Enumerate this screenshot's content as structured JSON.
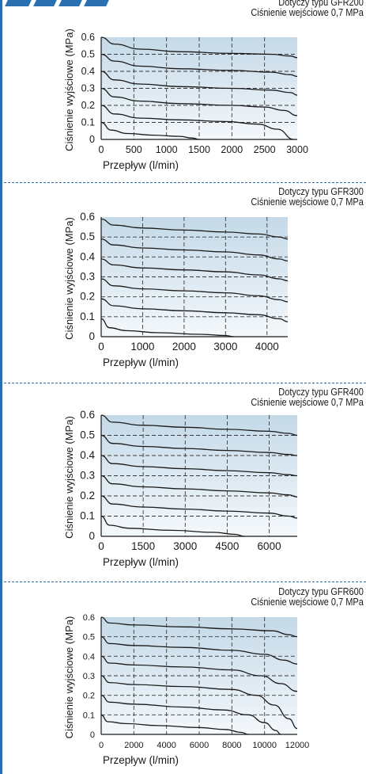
{
  "colors": {
    "accent": "#2a6fb0",
    "plot_top": "#c4d9e8",
    "plot_bottom": "#f4f8fb",
    "curve": "#1a1a1a"
  },
  "captions": [
    {
      "type_label": "Dotyczy typu GFR200",
      "inlet_label": "Ciśnienie wejściowe 0,7 MPa"
    },
    {
      "type_label": "Dotyczy typu GFR300",
      "inlet_label": "Ciśnienie wejściowe 0,7 MPa"
    },
    {
      "type_label": "Dotyczy typu GFR400",
      "inlet_label": "Ciśnienie wejściowe 0,7 MPa"
    },
    {
      "type_label": "Dotyczy typu GFR600",
      "inlet_label": "Ciśnienie wejściowe 0,7 MPa"
    }
  ],
  "chart_data": [
    {
      "type": "line",
      "xlabel": "Przepływ (l/min)",
      "ylabel": "Ciśnienie wyjściowe (MPa)",
      "xlim": [
        0,
        3000
      ],
      "ylim": [
        0,
        0.6
      ],
      "xticks": [
        0,
        500,
        1000,
        1500,
        2000,
        2500,
        3000
      ],
      "yticks": [
        0,
        0.1,
        0.2,
        0.3,
        0.4,
        0.5,
        0.6
      ],
      "grid": true,
      "series": [
        {
          "x": [
            0,
            200,
            600,
            1200,
            2000,
            2600,
            2900,
            3000
          ],
          "y": [
            0.6,
            0.56,
            0.53,
            0.515,
            0.505,
            0.5,
            0.49,
            0.48
          ]
        },
        {
          "x": [
            0,
            200,
            600,
            1200,
            2000,
            2600,
            2900,
            3000
          ],
          "y": [
            0.5,
            0.46,
            0.43,
            0.415,
            0.405,
            0.395,
            0.38,
            0.37
          ]
        },
        {
          "x": [
            0,
            200,
            600,
            1200,
            2000,
            2600,
            2900,
            3000
          ],
          "y": [
            0.4,
            0.35,
            0.325,
            0.31,
            0.3,
            0.29,
            0.275,
            0.26
          ]
        },
        {
          "x": [
            0,
            200,
            600,
            1200,
            2000,
            2500,
            2800,
            3000
          ],
          "y": [
            0.3,
            0.25,
            0.225,
            0.21,
            0.2,
            0.19,
            0.17,
            0.14
          ]
        },
        {
          "x": [
            0,
            200,
            600,
            1200,
            1900,
            2400,
            2700,
            2950
          ],
          "y": [
            0.2,
            0.15,
            0.125,
            0.115,
            0.105,
            0.09,
            0.06,
            0.0
          ]
        },
        {
          "x": [
            0,
            150,
            400,
            800,
            1200,
            1400,
            1500
          ],
          "y": [
            0.1,
            0.055,
            0.035,
            0.025,
            0.018,
            0.008,
            0.0
          ]
        }
      ]
    },
    {
      "type": "line",
      "xlabel": "Przepływ (l/min)",
      "ylabel": "Ciśnienie wyjściowe (MPa)",
      "xlim": [
        0,
        4500
      ],
      "ylim": [
        0,
        0.6
      ],
      "xticks": [
        0,
        1000,
        2000,
        3000,
        4000
      ],
      "yticks": [
        0,
        0.1,
        0.2,
        0.3,
        0.4,
        0.5,
        0.6
      ],
      "grid": true,
      "series": [
        {
          "x": [
            0,
            300,
            1000,
            2000,
            3000,
            3800,
            4300,
            4500
          ],
          "y": [
            0.59,
            0.56,
            0.545,
            0.535,
            0.525,
            0.515,
            0.5,
            0.49
          ]
        },
        {
          "x": [
            0,
            300,
            1000,
            2000,
            3000,
            3800,
            4300,
            4500
          ],
          "y": [
            0.49,
            0.46,
            0.445,
            0.435,
            0.425,
            0.41,
            0.39,
            0.38
          ]
        },
        {
          "x": [
            0,
            300,
            1000,
            2000,
            3000,
            3800,
            4300,
            4500
          ],
          "y": [
            0.39,
            0.36,
            0.345,
            0.335,
            0.325,
            0.31,
            0.29,
            0.28
          ]
        },
        {
          "x": [
            0,
            300,
            1000,
            2000,
            3000,
            3800,
            4300,
            4500
          ],
          "y": [
            0.29,
            0.255,
            0.24,
            0.23,
            0.22,
            0.205,
            0.185,
            0.175
          ]
        },
        {
          "x": [
            0,
            300,
            1000,
            2000,
            3000,
            3800,
            4300,
            4500
          ],
          "y": [
            0.19,
            0.155,
            0.14,
            0.13,
            0.12,
            0.11,
            0.09,
            0.075
          ]
        },
        {
          "x": [
            0,
            200,
            600,
            1400,
            2400,
            3000,
            3200
          ],
          "y": [
            0.09,
            0.045,
            0.03,
            0.02,
            0.012,
            0.006,
            0.0
          ]
        }
      ]
    },
    {
      "type": "line",
      "xlabel": "Przepływ (l/min)",
      "ylabel": "Ciśnienie wyjściowe (MPa)",
      "xlim": [
        0,
        7000
      ],
      "ylim": [
        0,
        0.6
      ],
      "xticks": [
        0,
        1500,
        3000,
        4500,
        6000
      ],
      "yticks": [
        0,
        0.1,
        0.2,
        0.3,
        0.4,
        0.5,
        0.6
      ],
      "grid": true,
      "series": [
        {
          "x": [
            0,
            400,
            1500,
            3000,
            4500,
            6000,
            6700,
            7000
          ],
          "y": [
            0.6,
            0.565,
            0.55,
            0.54,
            0.53,
            0.52,
            0.51,
            0.5
          ]
        },
        {
          "x": [
            0,
            400,
            1500,
            3000,
            4500,
            6000,
            6700,
            7000
          ],
          "y": [
            0.5,
            0.46,
            0.445,
            0.435,
            0.425,
            0.415,
            0.405,
            0.4
          ]
        },
        {
          "x": [
            0,
            400,
            1500,
            3000,
            4500,
            6000,
            6700,
            7000
          ],
          "y": [
            0.4,
            0.36,
            0.345,
            0.335,
            0.325,
            0.315,
            0.305,
            0.3
          ]
        },
        {
          "x": [
            0,
            400,
            1500,
            3000,
            4500,
            6000,
            6700,
            7000
          ],
          "y": [
            0.3,
            0.26,
            0.245,
            0.235,
            0.225,
            0.215,
            0.205,
            0.195
          ]
        },
        {
          "x": [
            0,
            400,
            1500,
            3000,
            4500,
            6000,
            6700,
            7000
          ],
          "y": [
            0.2,
            0.16,
            0.145,
            0.135,
            0.125,
            0.115,
            0.1,
            0.09
          ]
        },
        {
          "x": [
            0,
            300,
            1000,
            2500,
            4000,
            4800,
            5100
          ],
          "y": [
            0.1,
            0.055,
            0.04,
            0.03,
            0.02,
            0.01,
            0.0
          ]
        }
      ]
    },
    {
      "type": "line",
      "xlabel": "Przepływ (l/min)",
      "ylabel": "Ciśnienie wyjściowe (MPa)",
      "xlim": [
        0,
        12000
      ],
      "ylim": [
        0,
        0.6
      ],
      "xticks": [
        0,
        2000,
        4000,
        6000,
        8000,
        10000,
        12000
      ],
      "yticks": [
        0,
        0.1,
        0.2,
        0.3,
        0.4,
        0.5,
        0.6
      ],
      "grid": true,
      "series": [
        {
          "x": [
            0,
            500,
            2000,
            5000,
            8000,
            10500,
            11500,
            12000
          ],
          "y": [
            0.6,
            0.57,
            0.56,
            0.55,
            0.54,
            0.53,
            0.51,
            0.5
          ]
        },
        {
          "x": [
            0,
            500,
            2000,
            5000,
            8000,
            10000,
            11200,
            12000
          ],
          "y": [
            0.5,
            0.465,
            0.455,
            0.445,
            0.43,
            0.41,
            0.38,
            0.36
          ]
        },
        {
          "x": [
            0,
            500,
            2000,
            5000,
            8000,
            9800,
            11000,
            12000
          ],
          "y": [
            0.4,
            0.365,
            0.355,
            0.345,
            0.33,
            0.3,
            0.26,
            0.22
          ]
        },
        {
          "x": [
            0,
            500,
            2000,
            5000,
            8000,
            9500,
            10600,
            11500,
            12000
          ],
          "y": [
            0.3,
            0.265,
            0.255,
            0.245,
            0.23,
            0.2,
            0.15,
            0.08,
            0.03
          ]
        },
        {
          "x": [
            0,
            500,
            2000,
            5000,
            7500,
            9000,
            10000,
            10700,
            11000
          ],
          "y": [
            0.2,
            0.165,
            0.155,
            0.14,
            0.125,
            0.1,
            0.06,
            0.02,
            0.0
          ]
        },
        {
          "x": [
            0,
            400,
            1500,
            3500,
            6000,
            7600,
            8600,
            9000
          ],
          "y": [
            0.1,
            0.065,
            0.055,
            0.045,
            0.035,
            0.025,
            0.01,
            0.0
          ]
        }
      ]
    }
  ]
}
